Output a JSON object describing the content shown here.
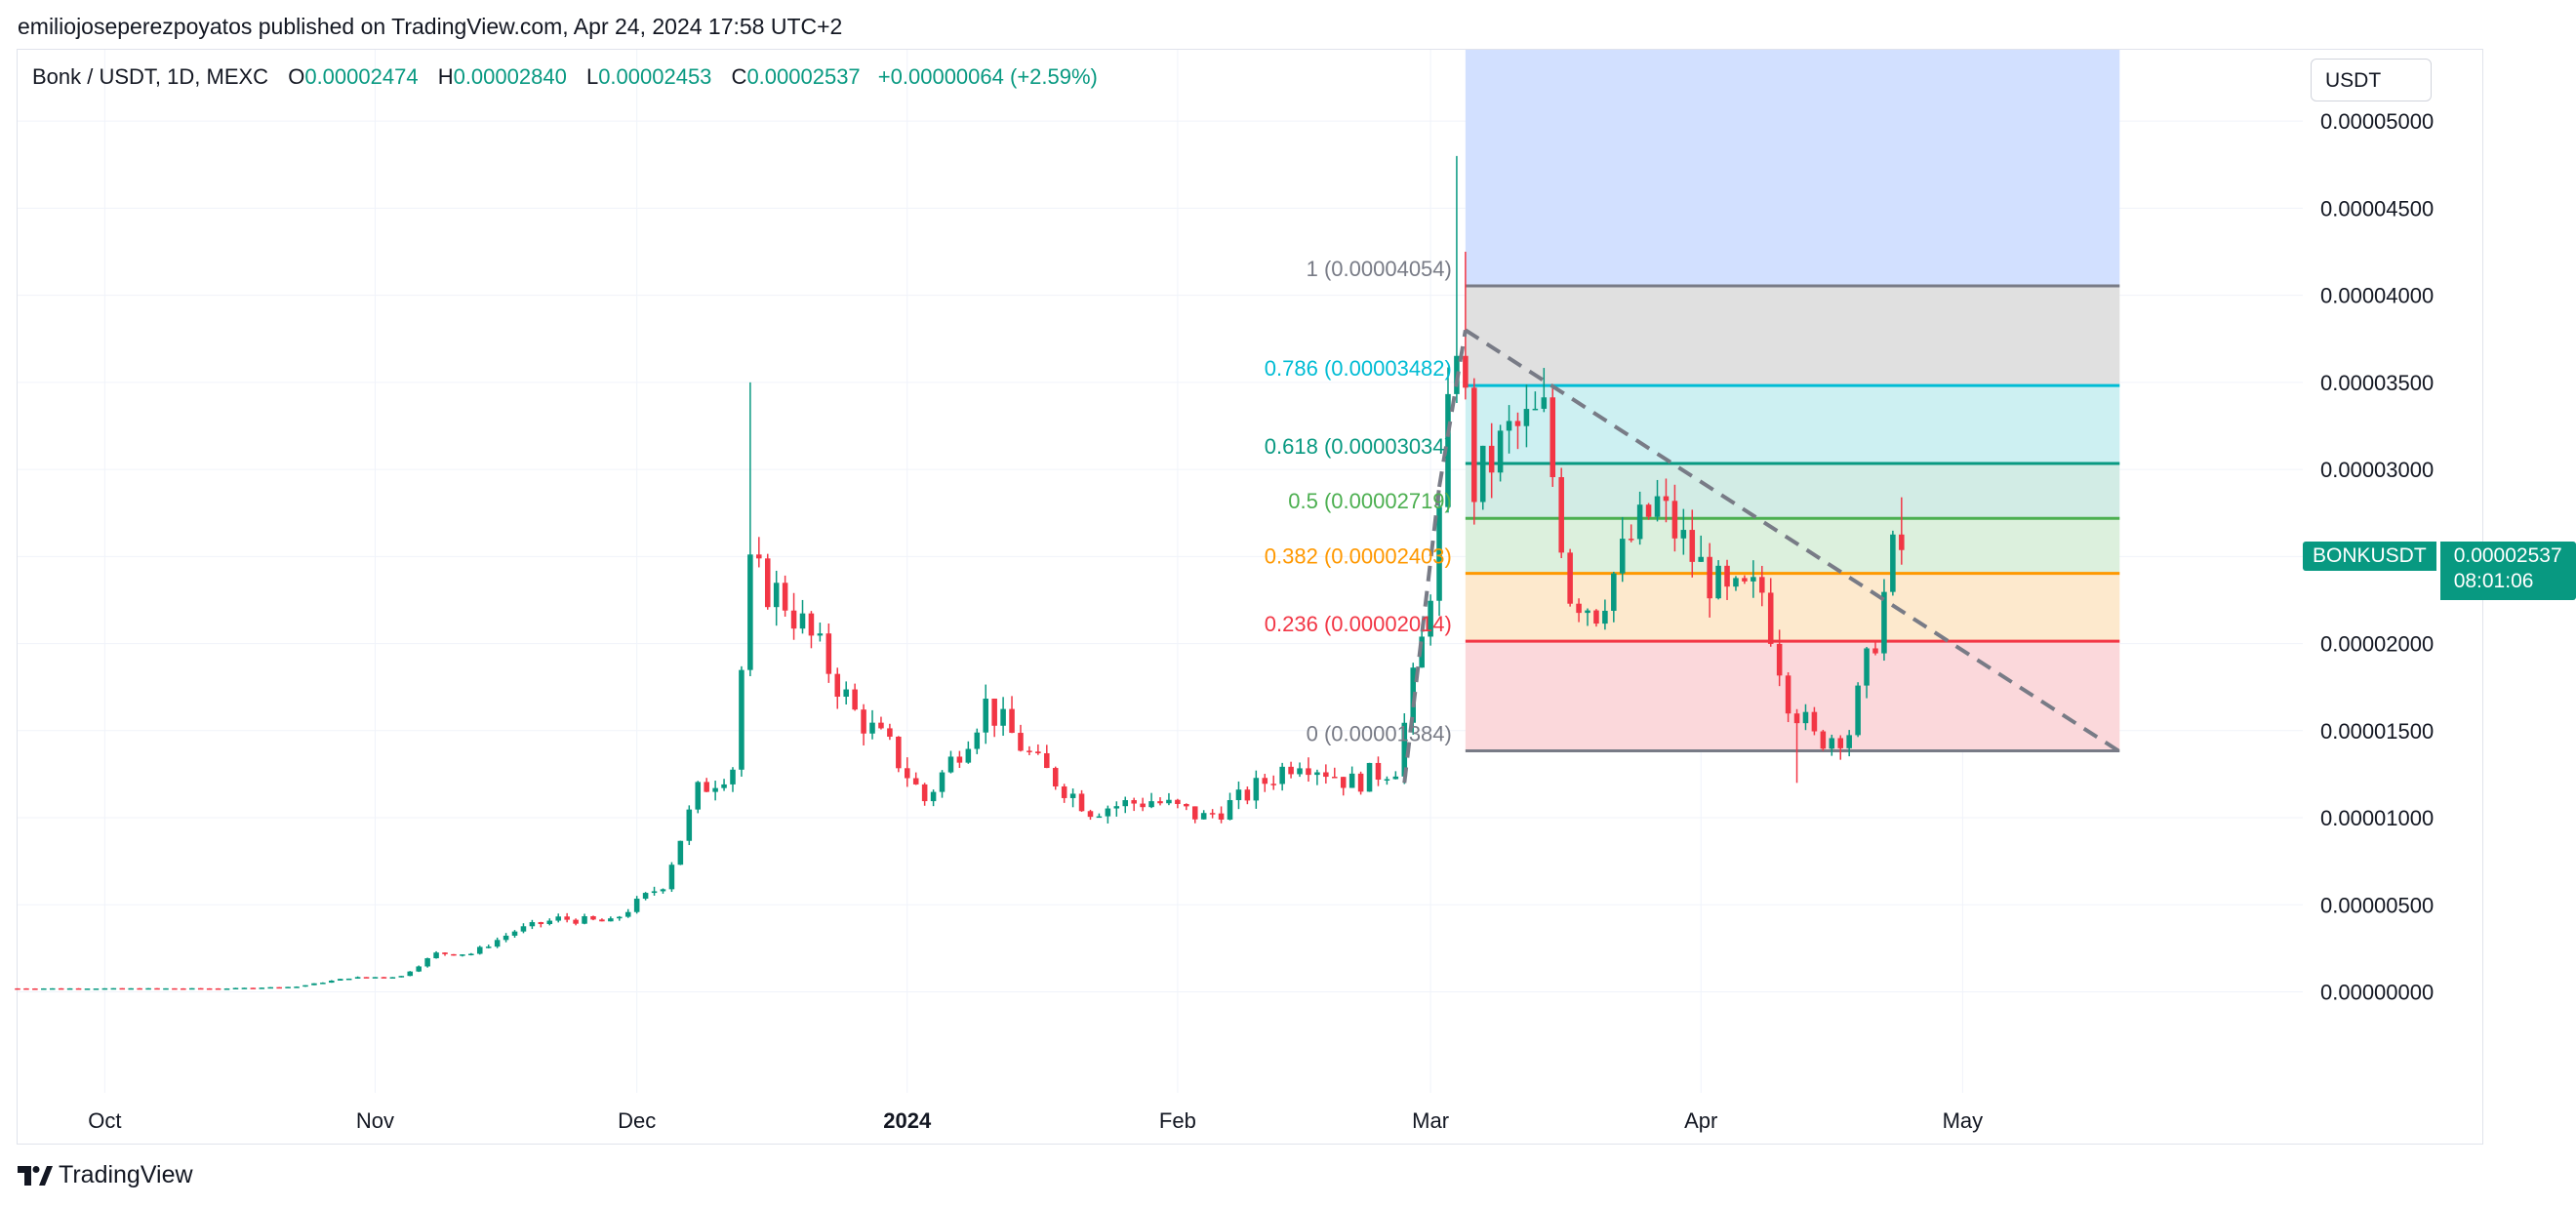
{
  "publisher_line": "emiliojoseperezpoyatos published on TradingView.com, Apr 24, 2024 17:58 UTC+2",
  "legend": {
    "symbol": "Bonk / USDT, 1D, MEXC",
    "o_label": "O",
    "o": "0.00002474",
    "h_label": "H",
    "h": "0.00002840",
    "l_label": "L",
    "l": "0.00002453",
    "c_label": "C",
    "c": "0.00002537",
    "change": "+0.00000064 (+2.59%)"
  },
  "currency_selector": "USDT",
  "brand": "TradingView",
  "last_price": {
    "symbol": "BONKUSDT",
    "price": "0.00002537",
    "countdown": "08:01:06"
  },
  "colors": {
    "up": "#089981",
    "down": "#f23645",
    "grid": "#f0f3fa",
    "axis_text": "#131722"
  },
  "chart_data": {
    "type": "candlestick",
    "symbol": "BONKUSDT",
    "x_labels": [
      {
        "label": "Oct",
        "date": "2023-10-01"
      },
      {
        "label": "Nov",
        "date": "2023-11-01"
      },
      {
        "label": "Dec",
        "date": "2023-12-01"
      },
      {
        "label": "2024",
        "date": "2024-01-01"
      },
      {
        "label": "Feb",
        "date": "2024-02-01"
      },
      {
        "label": "Mar",
        "date": "2024-03-01"
      },
      {
        "label": "Apr",
        "date": "2024-04-01"
      },
      {
        "label": "May",
        "date": "2024-05-01"
      }
    ],
    "x_range": [
      "2023-09-21",
      "2024-06-09"
    ],
    "y_ticks": [
      "0.00005000",
      "0.00004500",
      "0.00004000",
      "0.00003500",
      "0.00003000",
      "0.00002500",
      "0.00002000",
      "0.00001500",
      "0.00001000",
      "0.00000500",
      "0.00000000"
    ],
    "y_range": [
      -5.8e-06,
      5.41e-05
    ],
    "price_points": [
      [
        "2023-09-21",
        2e-07
      ],
      [
        "2023-10-01",
        2e-07
      ],
      [
        "2023-10-15",
        2e-07
      ],
      [
        "2023-10-23",
        3e-07
      ],
      [
        "2023-10-29",
        8e-07
      ],
      [
        "2023-11-04",
        9e-07
      ],
      [
        "2023-11-08",
        2.2e-06
      ],
      [
        "2023-11-12",
        2.2e-06
      ],
      [
        "2023-11-17",
        3.5e-06
      ],
      [
        "2023-11-22",
        4.2e-06
      ],
      [
        "2023-11-28",
        4e-06
      ],
      [
        "2023-12-04",
        6.2e-06
      ],
      [
        "2023-12-08",
        1.15e-05
      ],
      [
        "2023-12-12",
        1.3e-05
      ],
      [
        "2023-12-14",
        2.4e-05
      ],
      [
        "2023-12-18",
        2.25e-05
      ],
      [
        "2023-12-22",
        1.95e-05
      ],
      [
        "2023-12-26",
        1.6e-05
      ],
      [
        "2023-12-30",
        1.4e-05
      ],
      [
        "2024-01-03",
        1.1e-05
      ],
      [
        "2024-01-07",
        1.4e-05
      ],
      [
        "2024-01-10",
        1.65e-05
      ],
      [
        "2024-01-16",
        1.3e-05
      ],
      [
        "2024-01-22",
        1.05e-05
      ],
      [
        "2024-01-29",
        1.1e-05
      ],
      [
        "2024-02-04",
        1e-05
      ],
      [
        "2024-02-08",
        1.1e-05
      ],
      [
        "2024-02-15",
        1.35e-05
      ],
      [
        "2024-02-21",
        1.2e-05
      ],
      [
        "2024-02-26",
        1.3e-05
      ],
      [
        "2024-02-29",
        2e-05
      ],
      [
        "2024-03-02",
        2.7e-05
      ],
      [
        "2024-03-04",
        3.8e-05
      ],
      [
        "2024-03-06",
        2.9e-05
      ],
      [
        "2024-03-10",
        3.2e-05
      ],
      [
        "2024-03-14",
        3.3e-05
      ],
      [
        "2024-03-17",
        2.3e-05
      ],
      [
        "2024-03-20",
        2.2e-05
      ],
      [
        "2024-03-24",
        2.6e-05
      ],
      [
        "2024-03-27",
        2.8e-05
      ],
      [
        "2024-03-31",
        2.5e-05
      ],
      [
        "2024-04-04",
        2.25e-05
      ],
      [
        "2024-04-08",
        2.3e-05
      ],
      [
        "2024-04-11",
        1.7e-05
      ],
      [
        "2024-04-14",
        1.45e-05
      ],
      [
        "2024-04-18",
        1.5e-05
      ],
      [
        "2024-04-21",
        2.05e-05
      ],
      [
        "2024-04-23",
        2.5e-05
      ],
      [
        "2024-04-24",
        2.537e-05
      ]
    ],
    "wicks": [
      {
        "date": "2023-12-14",
        "high": 3.5e-05
      },
      {
        "date": "2024-03-04",
        "high": 4.8e-05
      },
      {
        "date": "2024-03-05",
        "high": 4.25e-05
      },
      {
        "date": "2024-04-12",
        "low": 1.2e-05
      },
      {
        "date": "2024-04-24",
        "high": 2.84e-05
      }
    ],
    "fibonacci": {
      "start_date": "2024-03-05",
      "end_date": "2024-05-19",
      "levels": [
        {
          "ratio": "1",
          "price": "0.00004054",
          "value": 4.054e-05,
          "line": "#787b86",
          "fill": "#e0e0e0",
          "label": "1 (0.00004054)"
        },
        {
          "ratio": "0.786",
          "price": "0.00003482",
          "value": 3.482e-05,
          "line": "#00bcd4",
          "fill": "#cdf0f2",
          "label": "0.786 (0.00003482)"
        },
        {
          "ratio": "0.618",
          "price": "0.00003034",
          "value": 3.034e-05,
          "line": "#089981",
          "fill": "#d2ece5",
          "label": "0.618 (0.00003034)"
        },
        {
          "ratio": "0.5",
          "price": "0.00002719",
          "value": 2.719e-05,
          "line": "#4caf50",
          "fill": "#dcf0dd",
          "label": "0.5 (0.00002719)"
        },
        {
          "ratio": "0.382",
          "price": "0.00002403",
          "value": 2.403e-05,
          "line": "#ff9800",
          "fill": "#fde9cd",
          "label": "0.382 (0.00002403)"
        },
        {
          "ratio": "0.236",
          "price": "0.00002014",
          "value": 2.014e-05,
          "line": "#f23645",
          "fill": "#fbd8db",
          "label": "0.236 (0.00002014)"
        },
        {
          "ratio": "0",
          "price": "0.00001384",
          "value": 1.384e-05,
          "line": "#787b86",
          "fill": null,
          "label": "0 (0.00001384)"
        }
      ],
      "top_extension": {
        "value": 5.41e-05,
        "fill": "#d2e0ff"
      }
    },
    "trend_lines": [
      {
        "style": "dashed",
        "color": "#787b86",
        "from": [
          "2024-02-27",
          1.2e-05
        ],
        "to": [
          "2024-03-02",
          2.9e-05
        ]
      },
      {
        "style": "dashed",
        "color": "#787b86",
        "from": [
          "2024-03-02",
          2.9e-05
        ],
        "to": [
          "2024-03-05",
          3.8e-05
        ]
      },
      {
        "style": "dashed",
        "color": "#787b86",
        "from": [
          "2024-03-05",
          3.8e-05
        ],
        "to": [
          "2024-05-19",
          1.38e-05
        ]
      }
    ]
  }
}
